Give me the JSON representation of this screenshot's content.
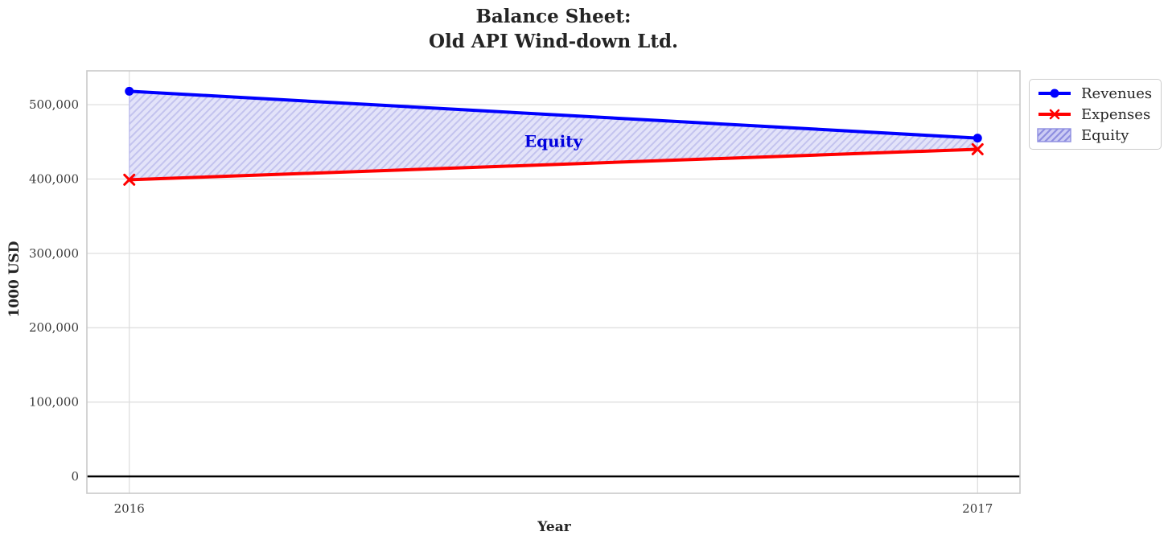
{
  "chart_data": {
    "type": "line",
    "title": "Balance Sheet:\nOld API Wind-down Ltd.",
    "xlabel": "Year",
    "ylabel": "1000 USD",
    "categories": [
      2016,
      2017
    ],
    "xtick_labels": [
      "2016",
      "2017"
    ],
    "series": [
      {
        "name": "Revenues",
        "color": "#0000ff",
        "marker": "circle",
        "values": [
          518000,
          455000
        ]
      },
      {
        "name": "Expenses",
        "color": "#ff0000",
        "marker": "x",
        "values": [
          399000,
          440000
        ]
      }
    ],
    "area": {
      "name": "Equity",
      "between": [
        "Revenues",
        "Expenses"
      ],
      "values": [
        119000,
        15000
      ],
      "fill": "#e3e3f9",
      "hatch_color": "#c3c3ee",
      "legend_fill": "#ccccf4",
      "legend_hatch": "#8e8ee0",
      "hatch_style": "diagonal-forward"
    },
    "annotation": {
      "text": "Equity",
      "x": 2016.5,
      "y": 451000,
      "color": "#0000dd"
    },
    "yticks": [
      0,
      100000,
      200000,
      300000,
      400000,
      500000
    ],
    "ytick_labels": [
      "0",
      "100,000",
      "200,000",
      "300,000",
      "400,000",
      "500,000"
    ],
    "xlim": [
      2015.95,
      2017.05
    ],
    "ylim": [
      -22700,
      545500
    ],
    "grid": true,
    "grid_color": "#dcdcdc",
    "spine_color": "#c9c9c9",
    "tick_label_color": "#3a3a3a",
    "zero_line": {
      "y": 0,
      "color": "#000000"
    },
    "legend": {
      "position": "upper right, outside plot",
      "entries": [
        "Revenues",
        "Expenses",
        "Equity"
      ]
    }
  }
}
